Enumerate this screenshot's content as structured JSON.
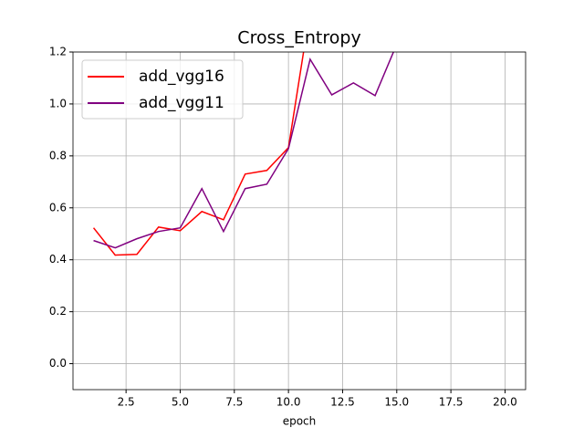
{
  "chart_data": {
    "type": "line",
    "title": "Cross_Entropy",
    "x_label": "epoch",
    "xlim": [
      0.05,
      20.95
    ],
    "ylim": [
      -0.1,
      1.2
    ],
    "xticks": [
      2.5,
      {
        "value": 5,
        "label": "5.0"
      },
      7.5,
      {
        "value": 10,
        "label": "10.0"
      },
      12.5,
      {
        "value": 15,
        "label": "15.0"
      },
      17.5,
      {
        "value": 20,
        "label": "20.0"
      }
    ],
    "yticks": [
      {
        "value": 0,
        "label": "0.0"
      },
      0.2,
      0.4,
      0.6,
      0.8,
      {
        "value": 1,
        "label": "1.0"
      },
      1.2
    ],
    "grid": true,
    "legend": "upper-left",
    "series": [
      {
        "name": "add_vgg16",
        "color": "#ff0000",
        "x": [
          1,
          2,
          3,
          4,
          5,
          6,
          7,
          8,
          9,
          10,
          11
        ],
        "values": [
          0.523,
          0.418,
          0.421,
          0.526,
          0.512,
          0.586,
          0.554,
          0.73,
          0.744,
          0.832,
          1.36
        ]
      },
      {
        "name": "add_vgg11",
        "color": "#800080",
        "x": [
          1,
          2,
          3,
          4,
          5,
          6,
          7,
          8,
          9,
          10,
          11,
          12,
          13,
          14,
          15
        ],
        "values": [
          0.474,
          0.446,
          0.481,
          0.509,
          0.523,
          0.674,
          0.509,
          0.674,
          0.691,
          0.828,
          1.172,
          1.035,
          1.081,
          1.032,
          1.23
        ]
      }
    ]
  }
}
